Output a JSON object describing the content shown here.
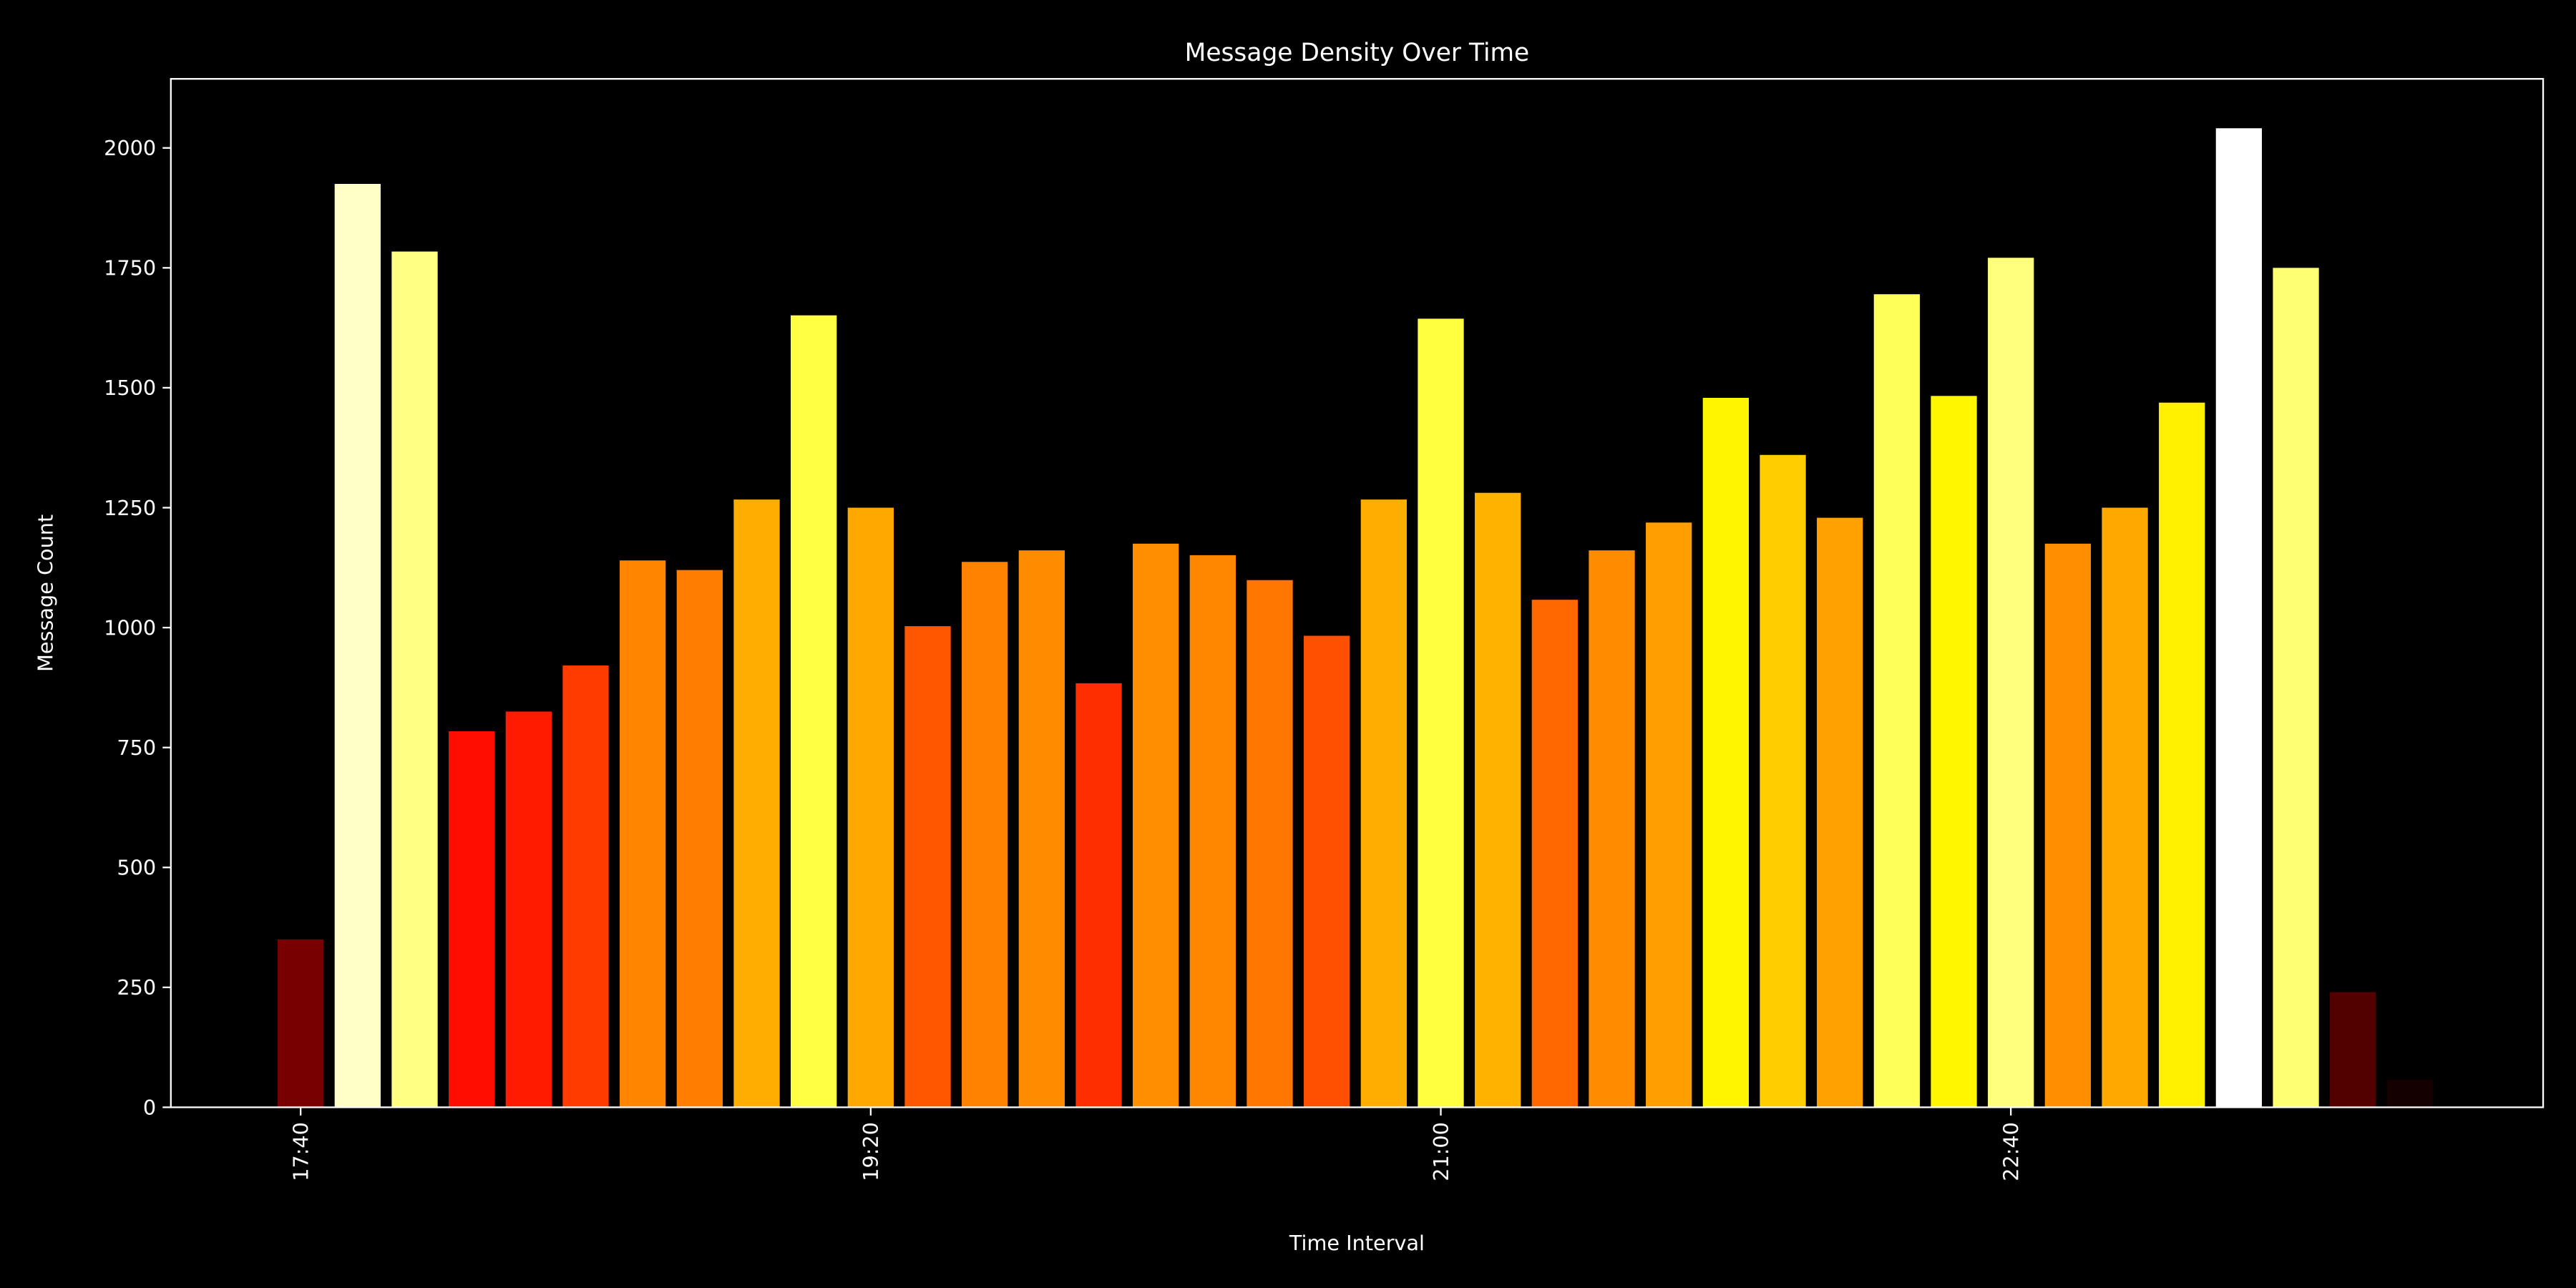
{
  "chart_data": {
    "type": "bar",
    "title": "Message Density Over Time",
    "xlabel": "Time Interval",
    "ylabel": "Message Count",
    "categories": [
      "17:40",
      null,
      null,
      null,
      null,
      null,
      null,
      null,
      null,
      null,
      "19:20",
      null,
      null,
      null,
      null,
      null,
      null,
      null,
      null,
      null,
      "21:00",
      null,
      null,
      null,
      null,
      null,
      null,
      null,
      null,
      null,
      "22:40",
      null,
      null,
      null,
      null,
      null,
      null,
      null
    ],
    "values": [
      350,
      1925,
      1784,
      784,
      825,
      921,
      1140,
      1120,
      1267,
      1651,
      1250,
      1003,
      1137,
      1161,
      884,
      1175,
      1151,
      1099,
      983,
      1267,
      1644,
      1281,
      1058,
      1161,
      1219,
      1479,
      1360,
      1229,
      1695,
      1483,
      1771,
      1175,
      1250,
      1469,
      2041,
      1750,
      240,
      58
    ],
    "colormap": "hot",
    "ylim": [
      0,
      2144
    ],
    "yticks": [
      0,
      250,
      500,
      750,
      1000,
      1250,
      1500,
      1750,
      2000
    ]
  }
}
